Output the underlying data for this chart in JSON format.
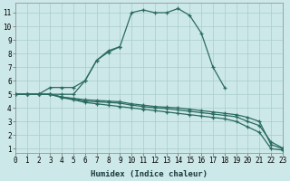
{
  "xlabel": "Humidex (Indice chaleur)",
  "bg_color": "#cde8e8",
  "grid_color": "#a8cccc",
  "line_color": "#2a6b60",
  "lines": [
    {
      "x": [
        0,
        1,
        2,
        3,
        4,
        5,
        6,
        7,
        8,
        9,
        10,
        11,
        12,
        13,
        14,
        15,
        16,
        17,
        18
      ],
      "y": [
        5,
        5,
        5,
        5,
        5,
        5,
        6.0,
        7.5,
        8.1,
        8.5,
        11.0,
        11.2,
        11.0,
        11.0,
        11.3,
        10.8,
        9.5,
        7.0,
        5.5
      ]
    },
    {
      "x": [
        0,
        1,
        2,
        3,
        4,
        5,
        6,
        7,
        8,
        9
      ],
      "y": [
        5,
        5,
        5,
        5.5,
        5.5,
        5.5,
        6.0,
        7.5,
        8.2,
        8.5
      ]
    },
    {
      "x": [
        0,
        1,
        2,
        3,
        4,
        5,
        6,
        7,
        8,
        9,
        10,
        11,
        12,
        13,
        14,
        15,
        16,
        17,
        18,
        19,
        20,
        21,
        22,
        23
      ],
      "y": [
        5,
        5,
        5,
        5,
        4.8,
        4.7,
        4.6,
        4.55,
        4.5,
        4.45,
        4.3,
        4.2,
        4.1,
        4.05,
        4.0,
        3.9,
        3.8,
        3.7,
        3.6,
        3.5,
        3.3,
        3.0,
        1.3,
        1.0
      ]
    },
    {
      "x": [
        0,
        1,
        2,
        3,
        4,
        5,
        6,
        7,
        8,
        9,
        10,
        11,
        12,
        13,
        14,
        15,
        16,
        17,
        18,
        19,
        20,
        21,
        22,
        23
      ],
      "y": [
        5,
        5,
        5,
        5,
        4.8,
        4.65,
        4.5,
        4.45,
        4.4,
        4.35,
        4.2,
        4.1,
        4.0,
        3.95,
        3.85,
        3.75,
        3.65,
        3.55,
        3.45,
        3.35,
        3.0,
        2.7,
        1.5,
        1.05
      ]
    },
    {
      "x": [
        0,
        1,
        2,
        3,
        4,
        5,
        6,
        7,
        8,
        9,
        10,
        11,
        12,
        13,
        14,
        15,
        16,
        17,
        18,
        19,
        20,
        21,
        22,
        23
      ],
      "y": [
        5,
        5,
        5,
        5,
        4.75,
        4.6,
        4.4,
        4.3,
        4.2,
        4.1,
        4.0,
        3.9,
        3.8,
        3.7,
        3.6,
        3.5,
        3.4,
        3.3,
        3.2,
        3.0,
        2.6,
        2.2,
        1.0,
        0.9
      ]
    }
  ],
  "xlim": [
    0,
    23
  ],
  "ylim": [
    0.7,
    11.7
  ],
  "xticks": [
    0,
    1,
    2,
    3,
    4,
    5,
    6,
    7,
    8,
    9,
    10,
    11,
    12,
    13,
    14,
    15,
    16,
    17,
    18,
    19,
    20,
    21,
    22,
    23
  ],
  "yticks": [
    1,
    2,
    3,
    4,
    5,
    6,
    7,
    8,
    9,
    10,
    11
  ],
  "tick_fontsize": 5.5,
  "xlabel_fontsize": 6.5
}
